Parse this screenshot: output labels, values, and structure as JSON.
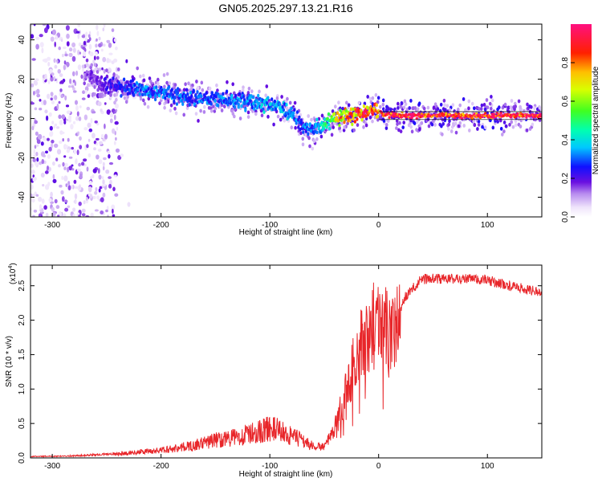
{
  "chart_data": [
    {
      "type": "heatmap",
      "title": "GN05.2025.297.13.21.R16",
      "xlabel": "Height of straight line (km)",
      "ylabel": "Frequency (Hz)",
      "xlim": [
        -320,
        150
      ],
      "ylim": [
        -50,
        48
      ],
      "x_ticks": [
        "-300",
        "-200",
        "-100",
        "0",
        "100"
      ],
      "y_ticks": [
        "-40",
        "-20",
        "0",
        "20",
        "40"
      ],
      "colorbar": {
        "label": "Normalized spectral amplitude",
        "range": [
          0,
          1
        ],
        "ticks": [
          "0.0",
          "0.2",
          "0.4",
          "0.6",
          "0.8"
        ]
      },
      "ridge": {
        "x": [
          -270,
          -250,
          -220,
          -190,
          -160,
          -130,
          -110,
          -95,
          -85,
          -75,
          -68,
          -60,
          -52,
          -45,
          -38,
          -30,
          -20,
          -10,
          -4,
          0,
          5,
          20,
          60,
          100,
          150
        ],
        "freq": [
          22,
          17,
          15,
          12,
          10,
          9,
          8,
          6,
          4,
          0,
          -5,
          -6,
          -3,
          -1,
          0,
          1,
          2,
          3,
          5,
          4,
          2,
          1.5,
          1.5,
          1.5,
          1.5
        ],
        "amplitude": [
          0.15,
          0.2,
          0.3,
          0.3,
          0.3,
          0.3,
          0.35,
          0.35,
          0.35,
          0.3,
          0.3,
          0.3,
          0.4,
          0.5,
          0.7,
          0.75,
          0.8,
          0.85,
          0.8,
          0.85,
          0.9,
          0.95,
          0.95,
          0.95,
          0.95
        ]
      },
      "noise_region_x": [
        -320,
        -240
      ]
    },
    {
      "type": "line",
      "xlabel": "Height of straight line (km)",
      "ylabel": "SNR (10 * v/v)",
      "y_scale_label": "(x10",
      "y_scale_exponent": "4",
      "xlim": [
        -320,
        150
      ],
      "ylim": [
        0,
        28000
      ],
      "x_ticks": [
        "-300",
        "-200",
        "-100",
        "0",
        "100"
      ],
      "y_ticks": [
        "0.0",
        "0.5",
        "1.0",
        "1.5",
        "2.0",
        "2.5"
      ],
      "series": [
        {
          "name": "SNR",
          "color": "#e8262a",
          "x": [
            -320,
            -280,
            -240,
            -200,
            -170,
            -150,
            -130,
            -115,
            -100,
            -90,
            -80,
            -70,
            -60,
            -50,
            -42,
            -36,
            -30,
            -24,
            -18,
            -12,
            -6,
            0,
            5,
            10,
            15,
            25,
            40,
            60,
            80,
            100,
            120,
            150
          ],
          "y": [
            200,
            300,
            600,
            1100,
            1800,
            2600,
            3000,
            3600,
            4300,
            3900,
            3100,
            2600,
            1600,
            1700,
            3500,
            6500,
            9500,
            13000,
            16500,
            16000,
            19000,
            21000,
            19000,
            18000,
            19500,
            23500,
            26000,
            26000,
            26000,
            25800,
            25000,
            24000
          ]
        }
      ]
    }
  ]
}
